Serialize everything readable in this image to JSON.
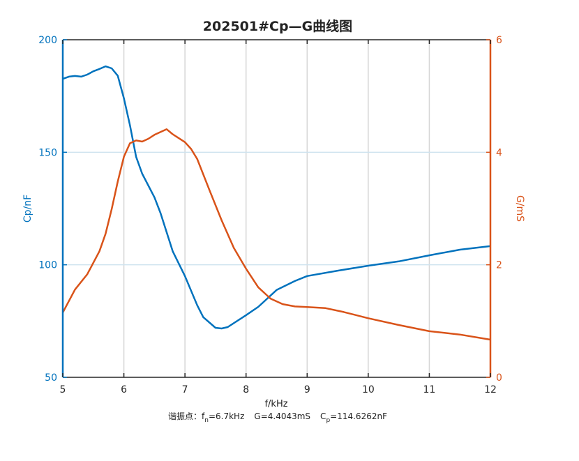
{
  "chart_data": {
    "type": "line",
    "title": "202501#Cp—G曲线图",
    "xlabel": "f/kHz",
    "ylabel_left": "Cp/nF",
    "ylabel_right": "G/mS",
    "xlim": [
      5,
      12
    ],
    "ylim_left": [
      50,
      200
    ],
    "ylim_right": [
      0,
      6
    ],
    "xticks": [
      5,
      6,
      7,
      8,
      9,
      10,
      11,
      12
    ],
    "yticks_left": [
      50,
      100,
      150,
      200
    ],
    "yticks_right": [
      0,
      2,
      4,
      6
    ],
    "grid": true,
    "colors": {
      "left": "#0072BD",
      "right": "#D95319"
    },
    "series": [
      {
        "name": "Cp",
        "axis": "left",
        "x": [
          5.0,
          5.1,
          5.2,
          5.3,
          5.4,
          5.5,
          5.6,
          5.7,
          5.8,
          5.9,
          6.0,
          6.1,
          6.2,
          6.3,
          6.5,
          6.6,
          6.8,
          7.0,
          7.2,
          7.3,
          7.5,
          7.6,
          7.7,
          8.0,
          8.2,
          8.5,
          8.8,
          9.0,
          9.5,
          10.0,
          10.5,
          11.0,
          11.5,
          12.0
        ],
        "y": [
          182.6,
          183.6,
          183.9,
          183.6,
          184.5,
          186,
          187,
          188.2,
          187.3,
          184,
          174,
          162,
          148,
          140.5,
          130,
          123,
          106,
          95,
          82,
          76.7,
          72,
          71.7,
          72.3,
          77.6,
          81.3,
          88.8,
          92.8,
          95,
          97.4,
          99.6,
          101.5,
          104.2,
          106.7,
          108.3
        ]
      },
      {
        "name": "G",
        "axis": "right",
        "x": [
          5.0,
          5.2,
          5.4,
          5.6,
          5.7,
          5.8,
          5.9,
          6.0,
          6.1,
          6.2,
          6.3,
          6.4,
          6.5,
          6.7,
          6.8,
          7.0,
          7.1,
          7.2,
          7.4,
          7.6,
          7.8,
          8.0,
          8.2,
          8.4,
          8.6,
          8.8,
          9.0,
          9.3,
          9.6,
          10.0,
          10.5,
          11.0,
          11.5,
          12.0
        ],
        "y": [
          1.15,
          1.56,
          1.83,
          2.24,
          2.55,
          2.99,
          3.48,
          3.92,
          4.16,
          4.21,
          4.19,
          4.24,
          4.31,
          4.41,
          4.32,
          4.18,
          4.06,
          3.88,
          3.33,
          2.79,
          2.3,
          1.93,
          1.6,
          1.4,
          1.3,
          1.26,
          1.25,
          1.23,
          1.16,
          1.05,
          0.93,
          0.82,
          0.76,
          0.67
        ]
      }
    ],
    "annotation": {
      "prefix": "谐振点：",
      "fn_main": "f",
      "fn_sub": "n",
      "fn_value": "=6.7kHz",
      "g_text": "G=4.4043mS",
      "cp_main": "C",
      "cp_sub": "p",
      "cp_value": "=114.6262nF"
    }
  }
}
